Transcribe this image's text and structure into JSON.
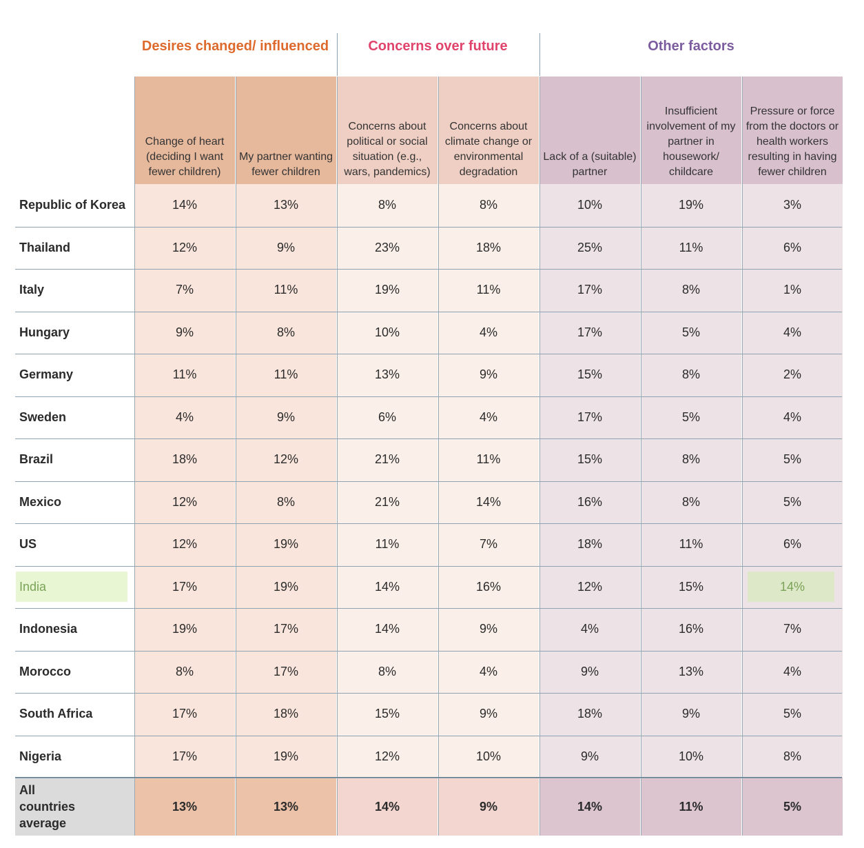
{
  "chart_data": {
    "type": "table",
    "column_groups": [
      {
        "label": "Desires changed/ influenced",
        "color": "#dd6a2c"
      },
      {
        "label": "Concerns over future",
        "color": "#e0436b"
      },
      {
        "label": "Other factors",
        "color": "#7b5c9e"
      }
    ],
    "columns": [
      "Change of heart (deciding I want fewer children)",
      "My partner wanting fewer children",
      "Concerns about political or social situation (e.g., wars, pandemics)",
      "Concerns about climate change or environmental degradation",
      "Lack of a (suitable) partner",
      "Insufficient involvement of my partner in housework/ childcare",
      "Pressure or force from the doctors or health workers resulting in having fewer children"
    ],
    "rows": [
      {
        "label": "Republic of Korea",
        "values": [
          "14%",
          "13%",
          "8%",
          "8%",
          "10%",
          "19%",
          "3%"
        ]
      },
      {
        "label": "Thailand",
        "values": [
          "12%",
          "9%",
          "23%",
          "18%",
          "25%",
          "11%",
          "6%"
        ]
      },
      {
        "label": "Italy",
        "values": [
          "7%",
          "11%",
          "19%",
          "11%",
          "17%",
          "8%",
          "1%"
        ]
      },
      {
        "label": "Hungary",
        "values": [
          "9%",
          "8%",
          "10%",
          "4%",
          "17%",
          "5%",
          "4%"
        ]
      },
      {
        "label": "Germany",
        "values": [
          "11%",
          "11%",
          "13%",
          "9%",
          "15%",
          "8%",
          "2%"
        ]
      },
      {
        "label": "Sweden",
        "values": [
          "4%",
          "9%",
          "6%",
          "4%",
          "17%",
          "5%",
          "4%"
        ]
      },
      {
        "label": "Brazil",
        "values": [
          "18%",
          "12%",
          "21%",
          "11%",
          "15%",
          "8%",
          "5%"
        ]
      },
      {
        "label": "Mexico",
        "values": [
          "12%",
          "8%",
          "21%",
          "14%",
          "16%",
          "8%",
          "5%"
        ]
      },
      {
        "label": "US",
        "values": [
          "12%",
          "19%",
          "11%",
          "7%",
          "18%",
          "11%",
          "6%"
        ]
      },
      {
        "label": "India",
        "values": [
          "17%",
          "19%",
          "14%",
          "16%",
          "12%",
          "15%",
          "14%"
        ],
        "highlight": true
      },
      {
        "label": "Indonesia",
        "values": [
          "19%",
          "17%",
          "14%",
          "9%",
          "4%",
          "16%",
          "7%"
        ]
      },
      {
        "label": "Morocco",
        "values": [
          "8%",
          "17%",
          "8%",
          "4%",
          "9%",
          "13%",
          "4%"
        ]
      },
      {
        "label": "South Africa",
        "values": [
          "17%",
          "18%",
          "15%",
          "9%",
          "18%",
          "9%",
          "5%"
        ]
      },
      {
        "label": "Nigeria",
        "values": [
          "17%",
          "19%",
          "12%",
          "10%",
          "9%",
          "10%",
          "8%"
        ]
      }
    ],
    "average": {
      "label": "All countries average",
      "values": [
        "13%",
        "13%",
        "14%",
        "9%",
        "14%",
        "11%",
        "5%"
      ]
    },
    "colors": {
      "header_bg": [
        "#e6b89c",
        "#e6b89c",
        "#efcfc4",
        "#efcfc4",
        "#d8c0cc",
        "#d8c0cc",
        "#d8c0cc"
      ],
      "body_bg": [
        "#f9e5dc",
        "#f9e5dc",
        "#faefe9",
        "#faefe9",
        "#ede2e6",
        "#ede2e6",
        "#ede2e6"
      ],
      "avg_bg": [
        "#ecc3a8",
        "#ecc3a8",
        "#f3d6cf",
        "#f3d6cf",
        "#dcc5cf",
        "#dcc5cf",
        "#dcc5cf"
      ],
      "highlight_text": "#7aa356",
      "highlight_bg": "#e9f6d4"
    }
  }
}
